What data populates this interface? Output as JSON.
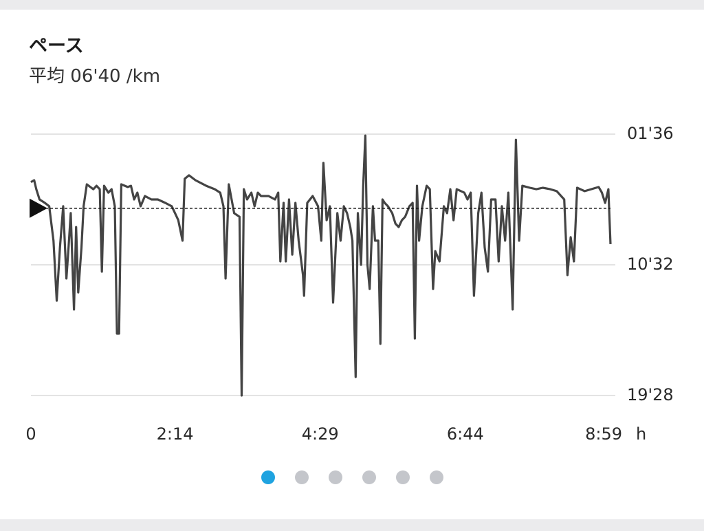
{
  "chart_data": {
    "type": "line",
    "title": "ペース",
    "average_prefix": "平均",
    "average": {
      "value": 400,
      "label": "06'40"
    },
    "unit": "/km",
    "xlabel": "h",
    "color": "#444444",
    "grid": true,
    "xlim": [
      0,
      539
    ],
    "xticks": [
      0,
      {
        "value": 134,
        "label": "2:14"
      },
      {
        "value": 269,
        "label": "4:29"
      },
      {
        "value": 404,
        "label": "6:44"
      },
      {
        "value": 539,
        "label": "8:59"
      }
    ],
    "ylim": [
      1168,
      96
    ],
    "yticks": [
      {
        "value": 96,
        "label": "01'36"
      },
      {
        "value": 632,
        "label": "10'32"
      },
      {
        "value": 1168,
        "label": "19'28"
      }
    ],
    "x": [
      0,
      3,
      5,
      8,
      13,
      17,
      21,
      24,
      27,
      30,
      33,
      35,
      37,
      40,
      42,
      44,
      47,
      49,
      52,
      58,
      61,
      64,
      66,
      68,
      72,
      75,
      78,
      80,
      82,
      84,
      90,
      93,
      96,
      99,
      102,
      106,
      112,
      118,
      125,
      131,
      134,
      137,
      141,
      143,
      147,
      153,
      163,
      171,
      176,
      179,
      181,
      184,
      189,
      194,
      196,
      198,
      201,
      205,
      208,
      211,
      214,
      221,
      227,
      230,
      232,
      235,
      237,
      240,
      243,
      246,
      249,
      253,
      254,
      257,
      262,
      267,
      270,
      272,
      275,
      278,
      281,
      285,
      288,
      291,
      294,
      297,
      299,
      302,
      304,
      307,
      309,
      311,
      313,
      315,
      318,
      320,
      323,
      325,
      327,
      329,
      332,
      336,
      339,
      342,
      345,
      348,
      352,
      355,
      357,
      359,
      361,
      364,
      368,
      371,
      374,
      376,
      380,
      384,
      387,
      390,
      393,
      396,
      403,
      406,
      409,
      412,
      416,
      419,
      422,
      425,
      428,
      432,
      435,
      438,
      441,
      444,
      448,
      451,
      454,
      457,
      464,
      470,
      476,
      483,
      489,
      496,
      499,
      502,
      505,
      508,
      515,
      521,
      528,
      531,
      534,
      537,
      539
    ],
    "values": [
      293,
      285,
      322,
      364,
      378,
      392,
      533,
      779,
      561,
      392,
      688,
      561,
      420,
      815,
      477,
      745,
      561,
      392,
      302,
      322,
      308,
      322,
      660,
      308,
      336,
      322,
      392,
      914,
      914,
      302,
      313,
      308,
      364,
      336,
      392,
      350,
      364,
      364,
      378,
      392,
      420,
      449,
      533,
      279,
      265,
      285,
      308,
      322,
      336,
      392,
      688,
      302,
      420,
      435,
      1168,
      322,
      364,
      336,
      392,
      336,
      350,
      350,
      364,
      336,
      618,
      378,
      618,
      364,
      590,
      378,
      533,
      674,
      759,
      378,
      350,
      392,
      533,
      214,
      449,
      392,
      787,
      420,
      533,
      392,
      420,
      477,
      533,
      1092,
      420,
      632,
      308,
      102,
      632,
      731,
      392,
      533,
      533,
      956,
      364,
      378,
      392,
      420,
      463,
      477,
      449,
      435,
      392,
      378,
      934,
      308,
      533,
      392,
      308,
      322,
      731,
      576,
      618,
      392,
      420,
      322,
      449,
      322,
      336,
      364,
      336,
      759,
      420,
      336,
      561,
      660,
      364,
      364,
      618,
      392,
      533,
      336,
      815,
      119,
      533,
      308,
      316,
      322,
      316,
      322,
      330,
      364,
      674,
      519,
      618,
      316,
      330,
      322,
      313,
      336,
      378,
      322,
      547
    ]
  }
}
